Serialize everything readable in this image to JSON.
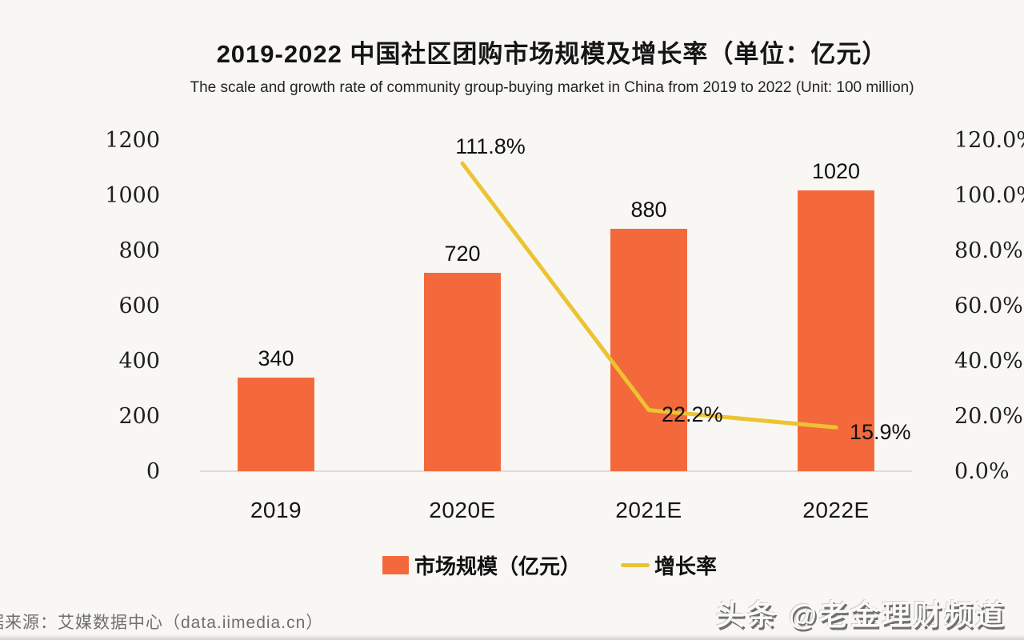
{
  "header": {
    "title": "2019-2022 中国社区团购市场规模及增长率（单位：亿元）",
    "subtitle": "The scale and growth rate of community group-buying market in China from 2019 to 2022 (Unit: 100 million)"
  },
  "chart_data": {
    "type": "combo",
    "categories": [
      "2019",
      "2020E",
      "2021E",
      "2022E"
    ],
    "series": [
      {
        "name": "市场规模（亿元）",
        "type": "bar",
        "axis": "left",
        "values": [
          340,
          720,
          880,
          1020
        ],
        "labels": [
          "340",
          "720",
          "880",
          "1020"
        ],
        "color": "#f3693c"
      },
      {
        "name": "增长率",
        "type": "line",
        "axis": "right",
        "values": [
          null,
          111.8,
          22.2,
          15.9
        ],
        "labels": [
          "",
          "111.8%",
          "22.2%",
          "15.9%"
        ],
        "color": "#ecc331"
      }
    ],
    "left_axis": {
      "ticks": [
        "1200",
        "1000",
        "800",
        "600",
        "400",
        "200",
        "0"
      ],
      "min": 0,
      "max": 1200
    },
    "right_axis": {
      "ticks": [
        "120.0%",
        "100.0%",
        "80.0%",
        "60.0%",
        "40.0%",
        "20.0%",
        "0.0%"
      ],
      "min": 0,
      "max": 120
    },
    "legend": [
      {
        "label": "市场规模（亿元）",
        "swatch": "bar"
      },
      {
        "label": "增长率",
        "swatch": "line"
      }
    ],
    "grid": false,
    "legend_position": "bottom"
  },
  "footer": {
    "source": "据来源：艾媒数据中心（data.iimedia.cn）",
    "watermark": "头条 @老金理财频道"
  }
}
